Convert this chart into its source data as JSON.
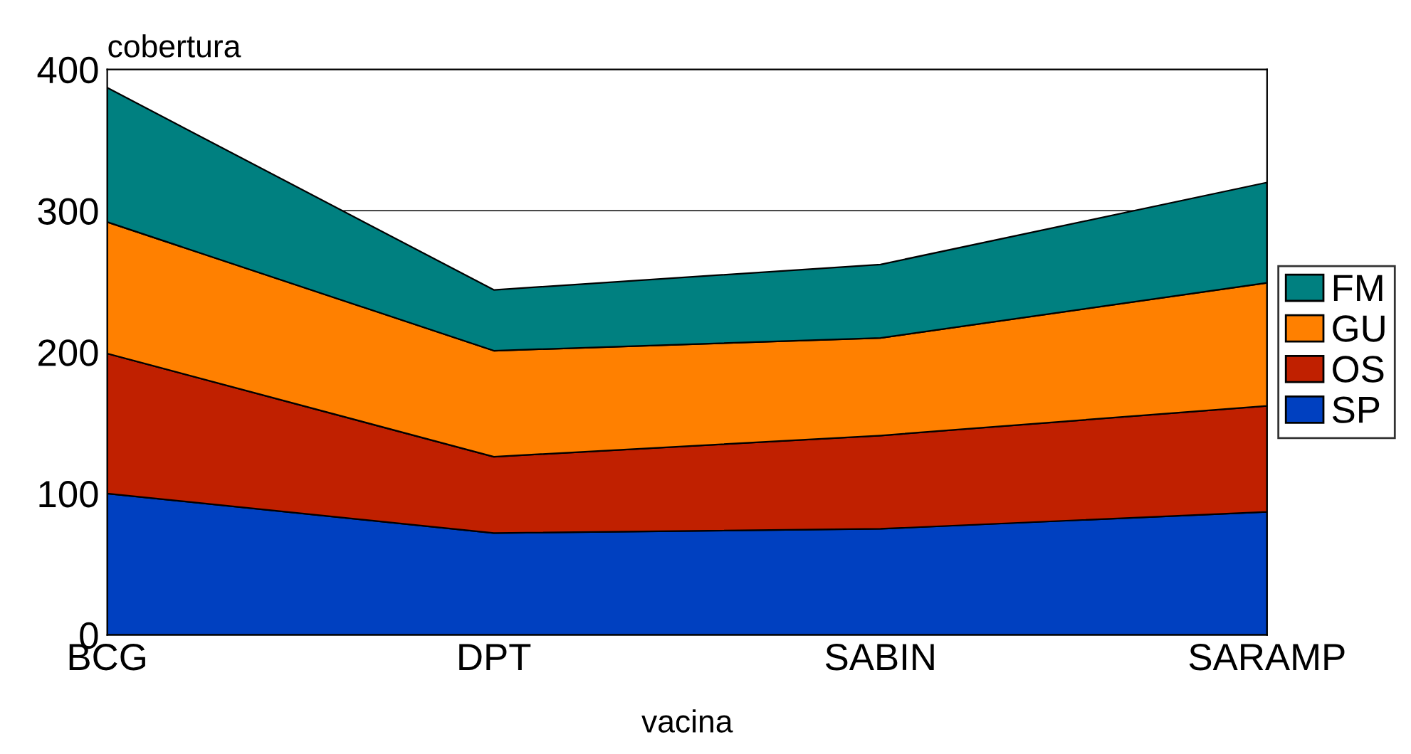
{
  "chart_data": {
    "type": "area",
    "stacked": true,
    "xlabel": "vacina",
    "ylabel": "cobertura",
    "categories": [
      "BCG",
      "DPT",
      "SABIN",
      "SARAMP"
    ],
    "series": [
      {
        "name": "SP",
        "color": "#0040c0",
        "values": [
          100,
          72,
          75,
          87
        ]
      },
      {
        "name": "OS",
        "color": "#c02000",
        "values": [
          99,
          54,
          66,
          75
        ]
      },
      {
        "name": "GU",
        "color": "#ff8000",
        "values": [
          93,
          75,
          69,
          87
        ]
      },
      {
        "name": "FM",
        "color": "#008080",
        "values": [
          95,
          43,
          52,
          71
        ]
      }
    ],
    "ylim": [
      0,
      400
    ],
    "yticks": [
      0,
      100,
      200,
      300,
      400
    ],
    "grid": "y",
    "legend": "right"
  }
}
